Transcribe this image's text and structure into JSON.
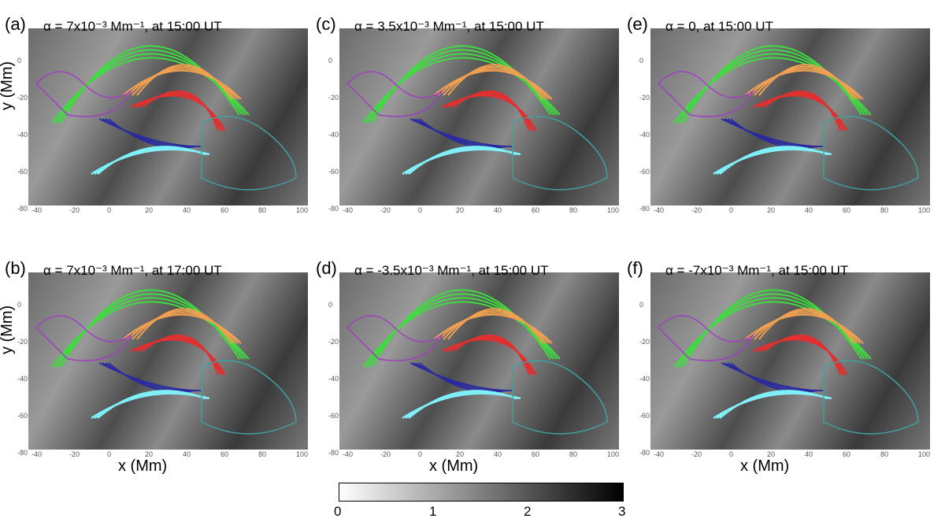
{
  "panels": [
    {
      "label": "(a)",
      "title": "α = 7x10⁻³ Mm⁻¹, at 15:00 UT",
      "ylabel": "y (Mm)",
      "xlabel": ""
    },
    {
      "label": "(c)",
      "title": "α = 3.5x10⁻³ Mm⁻¹, at 15:00 UT",
      "ylabel": "",
      "xlabel": ""
    },
    {
      "label": "(e)",
      "title": "α = 0, at 15:00 UT",
      "ylabel": "",
      "xlabel": ""
    },
    {
      "label": "(b)",
      "title": "α = 7x10⁻³ Mm⁻¹, at 17:00 UT",
      "ylabel": "y (Mm)",
      "xlabel": "x (Mm)"
    },
    {
      "label": "(d)",
      "title": "α = -3.5x10⁻³ Mm⁻¹, at 15:00 UT",
      "ylabel": "",
      "xlabel": "x (Mm)"
    },
    {
      "label": "(f)",
      "title": "α = -7x10⁻³ Mm⁻¹, at 15:00 UT",
      "ylabel": "",
      "xlabel": "x (Mm)"
    }
  ],
  "y_ticks": [
    "0",
    "-20",
    "-40",
    "-60",
    "-80"
  ],
  "x_ticks": [
    "-40",
    "-20",
    "0",
    "20",
    "40",
    "60",
    "80",
    "100"
  ],
  "colorbar": {
    "ticks": [
      "0",
      "1",
      "2",
      "3"
    ],
    "range": [
      0,
      3
    ],
    "colors": [
      "#ffffff",
      "#000000"
    ]
  },
  "colors": {
    "green": "#3fdc3f",
    "orange": "#f0a050",
    "red": "#e03030",
    "blue": "#2a2aa0",
    "cyan": "#80f0f8",
    "purple": "#a040c0",
    "teal": "#40a0a0"
  }
}
